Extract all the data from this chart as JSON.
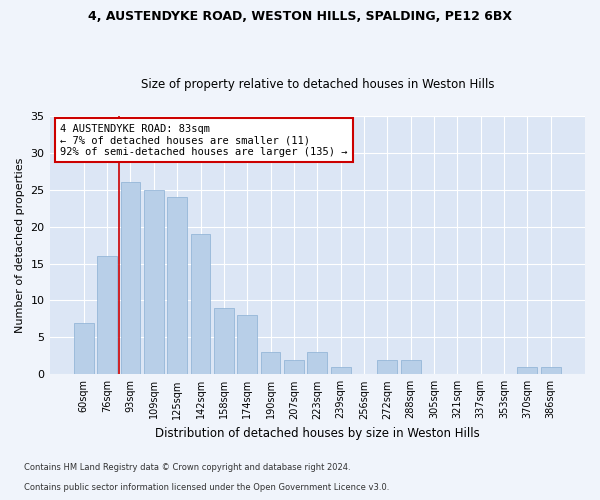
{
  "title1": "4, AUSTENDYKE ROAD, WESTON HILLS, SPALDING, PE12 6BX",
  "title2": "Size of property relative to detached houses in Weston Hills",
  "xlabel": "Distribution of detached houses by size in Weston Hills",
  "ylabel": "Number of detached properties",
  "categories": [
    "60sqm",
    "76sqm",
    "93sqm",
    "109sqm",
    "125sqm",
    "142sqm",
    "158sqm",
    "174sqm",
    "190sqm",
    "207sqm",
    "223sqm",
    "239sqm",
    "256sqm",
    "272sqm",
    "288sqm",
    "305sqm",
    "321sqm",
    "337sqm",
    "353sqm",
    "370sqm",
    "386sqm"
  ],
  "values": [
    7,
    16,
    26,
    25,
    24,
    19,
    9,
    8,
    3,
    2,
    3,
    1,
    0,
    2,
    2,
    0,
    0,
    0,
    0,
    1,
    1
  ],
  "bar_color": "#b8cfe8",
  "bar_edge_color": "#8aafd4",
  "background_color": "#dce6f5",
  "grid_color": "#ffffff",
  "annotation_text": "4 AUSTENDYKE ROAD: 83sqm\n← 7% of detached houses are smaller (11)\n92% of semi-detached houses are larger (135) →",
  "annotation_box_color": "#ffffff",
  "annotation_box_edge": "#cc0000",
  "vline_color": "#cc0000",
  "footnote1": "Contains HM Land Registry data © Crown copyright and database right 2024.",
  "footnote2": "Contains public sector information licensed under the Open Government Licence v3.0.",
  "ylim": [
    0,
    35
  ],
  "yticks": [
    0,
    5,
    10,
    15,
    20,
    25,
    30,
    35
  ],
  "fig_bg": "#f0f4fb"
}
